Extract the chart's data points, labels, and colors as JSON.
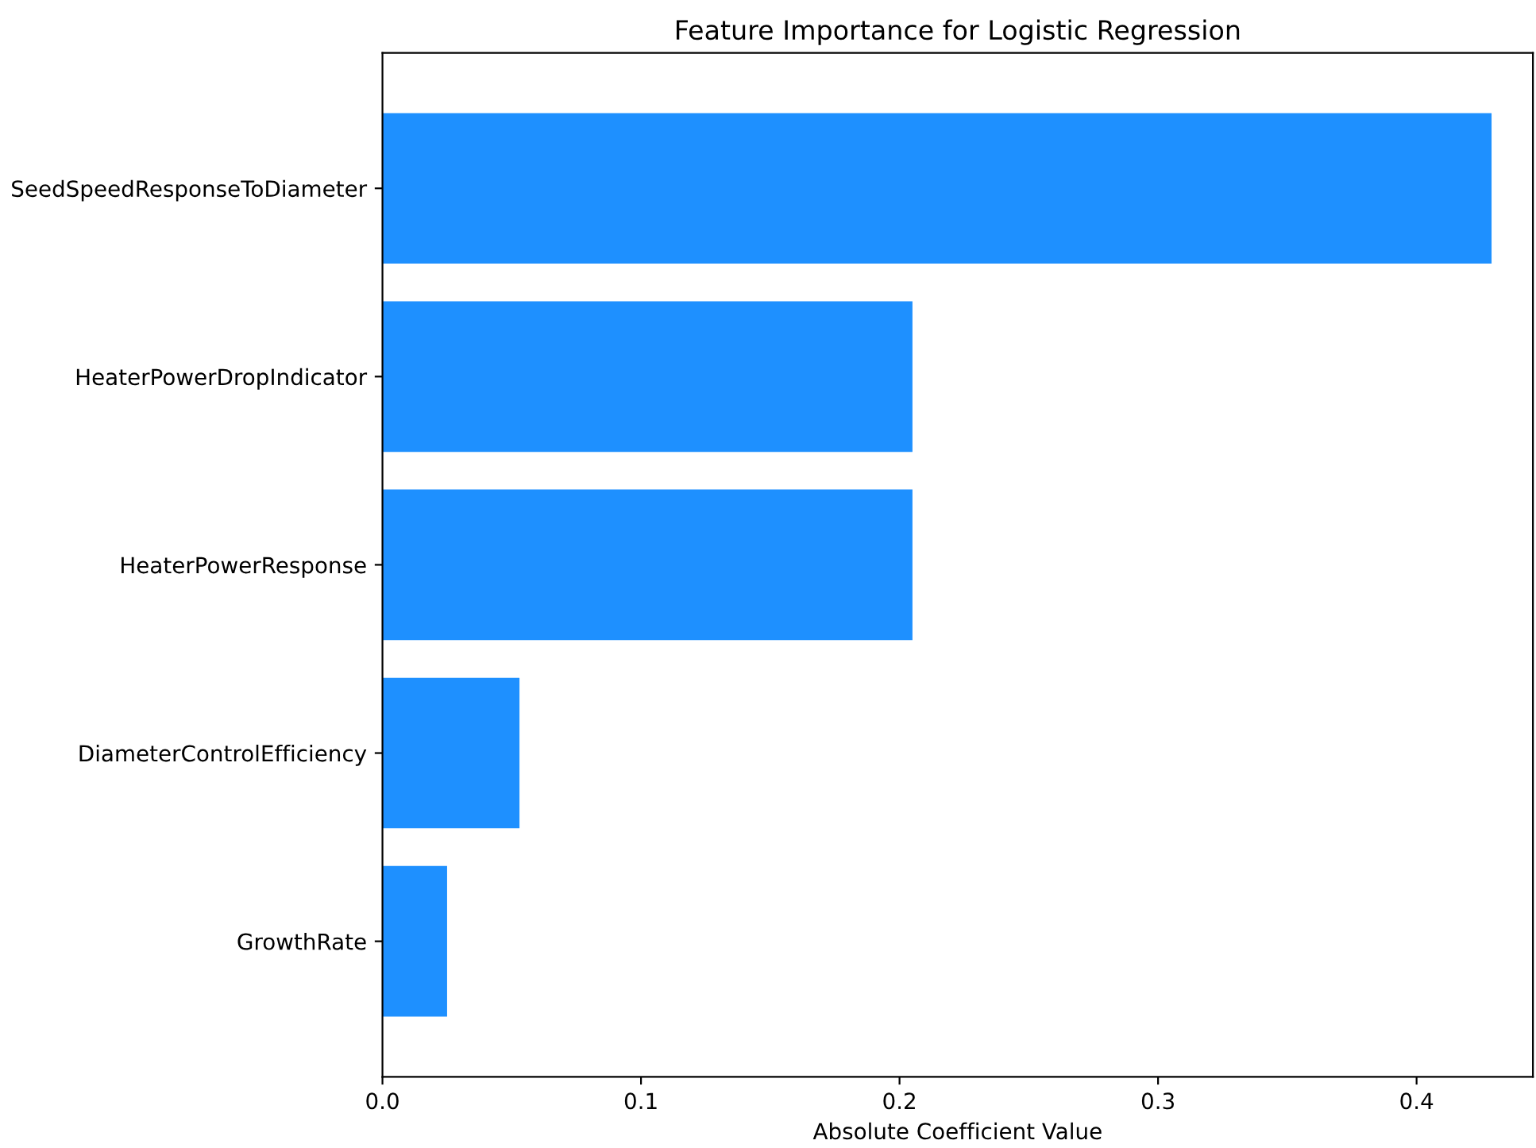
{
  "chart_data": {
    "type": "bar",
    "orientation": "horizontal",
    "title": "Feature Importance for Logistic Regression",
    "xlabel": "Absolute Coefficient Value",
    "categories": [
      "SeedSpeedResponseToDiameter",
      "HeaterPowerDropIndicator",
      "HeaterPowerResponse",
      "DiameterControlEfficiency",
      "GrowthRate"
    ],
    "values": [
      0.429,
      0.205,
      0.205,
      0.053,
      0.025
    ],
    "color": "#1e90ff",
    "xlim": [
      0,
      0.445
    ],
    "xticks": [
      {
        "value": 0,
        "label": "0.0"
      },
      0.1,
      0.2,
      0.3,
      0.4
    ],
    "grid": false
  }
}
